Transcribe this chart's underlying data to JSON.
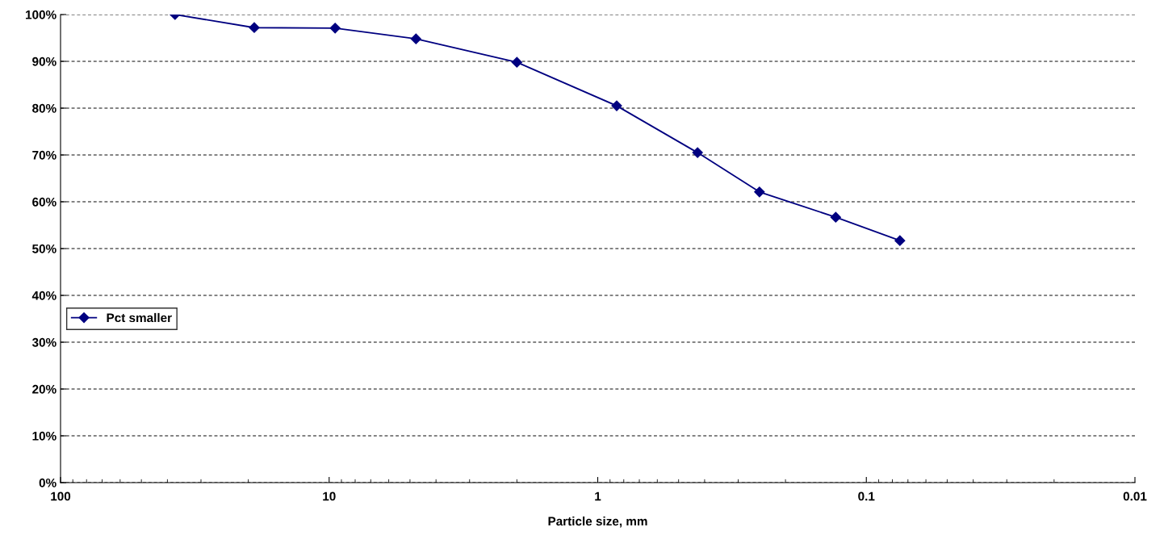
{
  "chart_data": {
    "type": "line",
    "xlabel": "Particle size, mm",
    "log": "x",
    "series": [
      {
        "name": "Pct smaller",
        "color": "#000080",
        "x": [
          37.5,
          19,
          9.5,
          4.75,
          2.0,
          0.85,
          0.425,
          0.25,
          0.13,
          0.075
        ],
        "values": [
          100,
          97.2,
          97.1,
          94.8,
          89.8,
          80.5,
          70.5,
          62.1,
          56.7,
          51.7
        ]
      }
    ],
    "xlim": [
      100,
      0.01
    ],
    "xticks": [
      100,
      10,
      1,
      0.1,
      0.01
    ],
    "ylim": [
      0,
      100
    ],
    "yticks": [
      {
        "value": 0,
        "label": "0%"
      },
      {
        "value": 10,
        "label": "10%"
      },
      {
        "value": 20,
        "label": "20%"
      },
      {
        "value": 30,
        "label": "30%"
      },
      {
        "value": 40,
        "label": "40%"
      },
      {
        "value": 50,
        "label": "50%"
      },
      {
        "value": 60,
        "label": "60%"
      },
      {
        "value": 70,
        "label": "70%"
      },
      {
        "value": 80,
        "label": "80%"
      },
      {
        "value": 90,
        "label": "90%"
      },
      {
        "value": 100,
        "label": "100%"
      }
    ],
    "grid": "y",
    "legend": "center left",
    "marker": "diamond",
    "line_style": "solid"
  }
}
